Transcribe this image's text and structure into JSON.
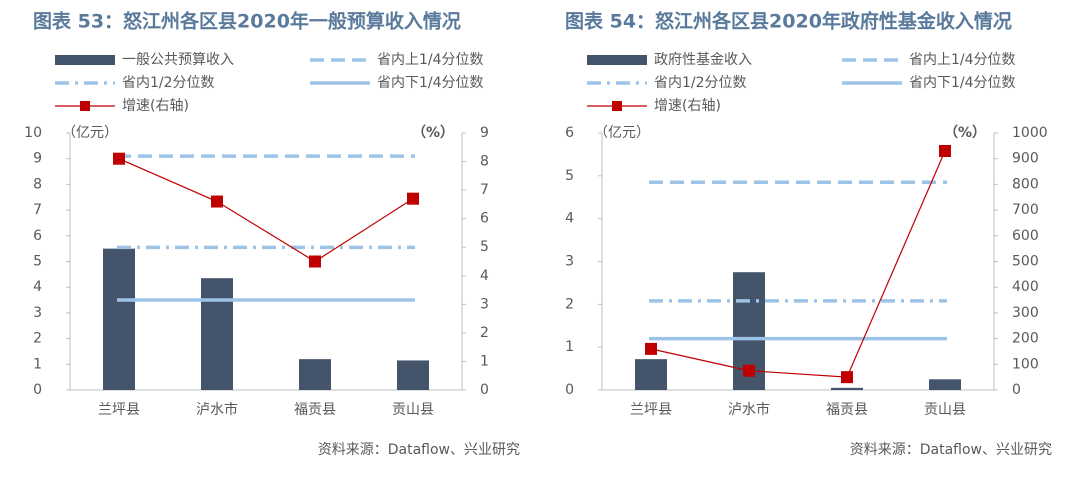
{
  "chart_data": [
    {
      "type": "bar",
      "title": "图表 53：怒江州各区县2020年一般预算收入情况",
      "y_label": "（亿元）",
      "y2_label": "（%）",
      "source": "资料来源：Dataflow、兴业研究",
      "categories": [
        "兰坪县",
        "泸水市",
        "福贡县",
        "贡山县"
      ],
      "ylim": [
        0,
        10
      ],
      "yticks": [
        0,
        1,
        2,
        3,
        4,
        5,
        6,
        7,
        8,
        9,
        10
      ],
      "y2lim": [
        0,
        9
      ],
      "y2ticks": [
        0,
        1,
        2,
        3,
        4,
        5,
        6,
        7,
        8,
        9
      ],
      "series": [
        {
          "name": "一般公共预算收入",
          "kind": "bar",
          "color": "#44546a",
          "values": [
            5.5,
            4.35,
            1.2,
            1.15
          ]
        },
        {
          "name": "省内上1/4分位数",
          "kind": "line",
          "dash": "dashed",
          "color": "#9dc3e6",
          "values": [
            9.1,
            9.1,
            9.1,
            9.1
          ]
        },
        {
          "name": "省内1/2分位数",
          "kind": "line",
          "dash": "dashdot",
          "color": "#9dc3e6",
          "values": [
            5.55,
            5.55,
            5.55,
            5.55
          ]
        },
        {
          "name": "省内下1/4分位数",
          "kind": "line",
          "dash": "solid",
          "color": "#9dc3e6",
          "values": [
            3.5,
            3.5,
            3.5,
            3.5
          ]
        },
        {
          "name": "增速(右轴)",
          "kind": "line",
          "dash": "solid",
          "marker": "square",
          "axis": "y2",
          "color": "#c00000",
          "values": [
            8.1,
            6.6,
            4.5,
            6.7
          ]
        }
      ]
    },
    {
      "type": "bar",
      "title": "图表 54：怒江州各区县2020年政府性基金收入情况",
      "y_label": "（亿元）",
      "y2_label": "（%）",
      "source": "资料来源：Dataflow、兴业研究",
      "categories": [
        "兰坪县",
        "泸水市",
        "福贡县",
        "贡山县"
      ],
      "ylim": [
        0,
        6
      ],
      "yticks": [
        0,
        1,
        2,
        3,
        4,
        5,
        6
      ],
      "y2lim": [
        0,
        1000
      ],
      "y2ticks": [
        0,
        100,
        200,
        300,
        400,
        500,
        600,
        700,
        800,
        900,
        1000
      ],
      "series": [
        {
          "name": "政府性基金收入",
          "kind": "bar",
          "color": "#44546a",
          "values": [
            0.72,
            2.75,
            0.05,
            0.25
          ]
        },
        {
          "name": "省内上1/4分位数",
          "kind": "line",
          "dash": "dashed",
          "color": "#9dc3e6",
          "values": [
            4.85,
            4.85,
            4.85,
            4.85
          ]
        },
        {
          "name": "省内1/2分位数",
          "kind": "line",
          "dash": "dashdot",
          "color": "#9dc3e6",
          "values": [
            2.08,
            2.08,
            2.08,
            2.08
          ]
        },
        {
          "name": "省内下1/4分位数",
          "kind": "line",
          "dash": "solid",
          "color": "#9dc3e6",
          "values": [
            1.2,
            1.2,
            1.2,
            1.2
          ]
        },
        {
          "name": "增速(右轴)",
          "kind": "line",
          "dash": "solid",
          "marker": "square",
          "axis": "y2",
          "color": "#c00000",
          "values": [
            160,
            75,
            50,
            930
          ]
        }
      ]
    }
  ]
}
